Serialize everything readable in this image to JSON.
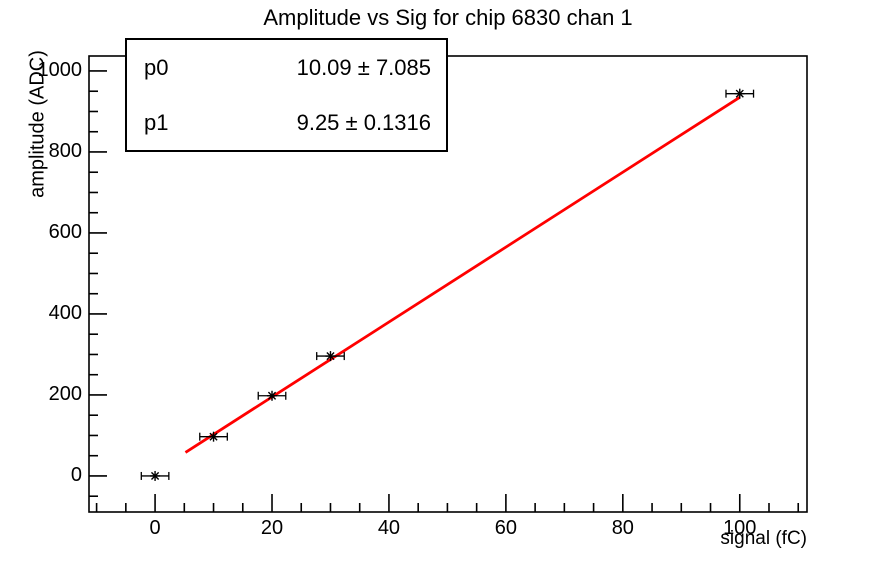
{
  "page": {
    "background": "#ffffff"
  },
  "chart_data": {
    "type": "scatter",
    "title": "Amplitude vs Sig for chip 6830 chan 1",
    "xlabel": "signal (fC)",
    "ylabel": "amplitude (ADC)",
    "grid": false,
    "axis_color": "#000000",
    "xlim": [
      -11.3,
      111.5
    ],
    "ylim": [
      -89,
      1037
    ],
    "x_ticks": [
      0,
      20,
      40,
      60,
      80,
      100
    ],
    "y_ticks": [
      0,
      200,
      400,
      600,
      800,
      1000
    ],
    "x_minor_step": 5,
    "y_minor_step": 50,
    "series": [
      {
        "name": "measured-points",
        "marker": "asterisk",
        "color": "#000000",
        "x": [
          0,
          10,
          20,
          30,
          100
        ],
        "y": [
          0,
          97,
          198,
          296,
          944
        ],
        "xerr": 1.5
      }
    ],
    "fit_line": {
      "name": "linear-fit",
      "color": "#ff0000",
      "p0": 10.09,
      "p1": 9.25,
      "x_start": 5.2,
      "x_end": 100
    },
    "stats_box": {
      "rows": [
        {
          "label": "p0",
          "value": "10.09 ± 7.085"
        },
        {
          "label": "p1",
          "value": "9.25 ± 0.1316"
        }
      ]
    }
  }
}
